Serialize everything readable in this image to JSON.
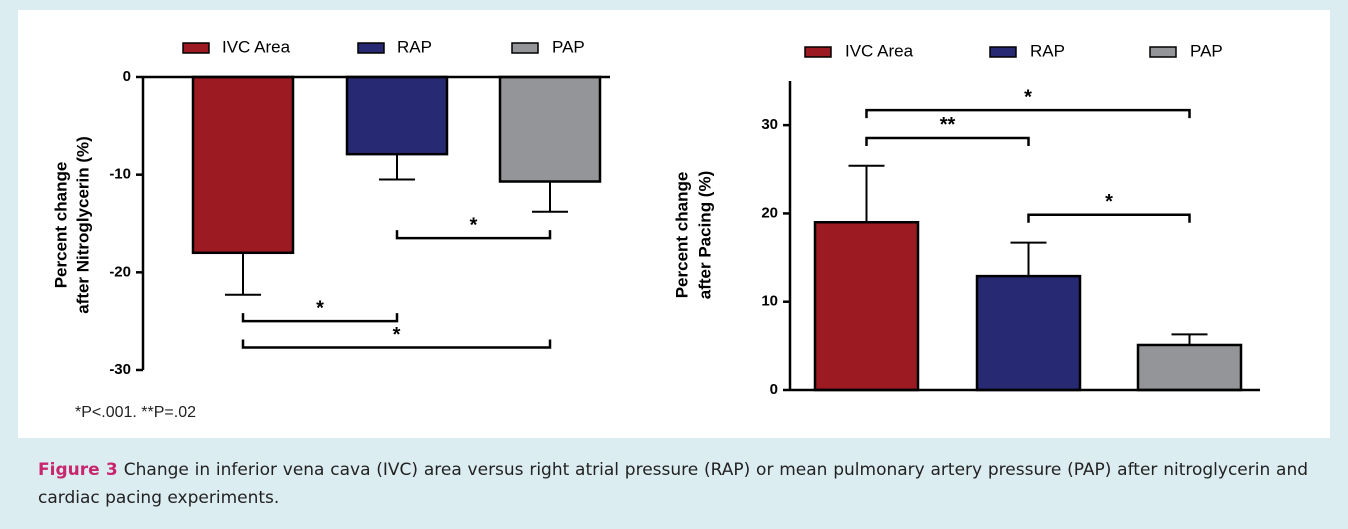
{
  "chart_data": [
    {
      "type": "bar",
      "ylabel": [
        "Percent change",
        "after Nitroglycerin (%)"
      ],
      "categories": [
        null
      ],
      "series": [
        {
          "name": "IVC Area",
          "color": "#9c1b22",
          "values": [
            -18
          ],
          "errors": [
            4.3
          ]
        },
        {
          "name": "RAP",
          "color": "#272a72",
          "values": [
            -7.9
          ],
          "errors": [
            2.6
          ]
        },
        {
          "name": "PAP",
          "color": "#939598",
          "values": [
            -10.7
          ],
          "errors": [
            3.1
          ]
        }
      ],
      "ylim": [
        -30,
        0
      ],
      "yticks": [
        0,
        -10,
        -20,
        -30
      ],
      "brackets": [
        {
          "pair": [
            1,
            2
          ],
          "label": "*"
        },
        {
          "pair": [
            0,
            1
          ],
          "label": "*"
        },
        {
          "pair": [
            0,
            2
          ],
          "label": "*"
        }
      ]
    },
    {
      "type": "bar",
      "ylabel": [
        "Percent change",
        "after Pacing (%)"
      ],
      "categories": [
        null
      ],
      "series": [
        {
          "name": "IVC Area",
          "color": "#9c1b22",
          "values": [
            19
          ],
          "errors": [
            6.4
          ]
        },
        {
          "name": "RAP",
          "color": "#272a72",
          "values": [
            12.9
          ],
          "errors": [
            3.8
          ]
        },
        {
          "name": "PAP",
          "color": "#939598",
          "values": [
            5.1
          ],
          "errors": [
            1.2
          ]
        }
      ],
      "ylim": [
        0,
        35
      ],
      "yticks": [
        0,
        10,
        20,
        30
      ],
      "brackets": [
        {
          "pair": [
            1,
            2
          ],
          "label": "*"
        },
        {
          "pair": [
            0,
            1
          ],
          "label": "**"
        },
        {
          "pair": [
            0,
            2
          ],
          "label": "*"
        }
      ]
    }
  ],
  "footnote": "*P<.001. **P=.02",
  "caption": {
    "label": "Figure 3",
    "text": "Change in inferior vena cava (IVC) area versus right atrial pressure (RAP) or mean pulmonary artery pressure (PAP) after nitroglycerin and cardiac pacing experiments."
  }
}
